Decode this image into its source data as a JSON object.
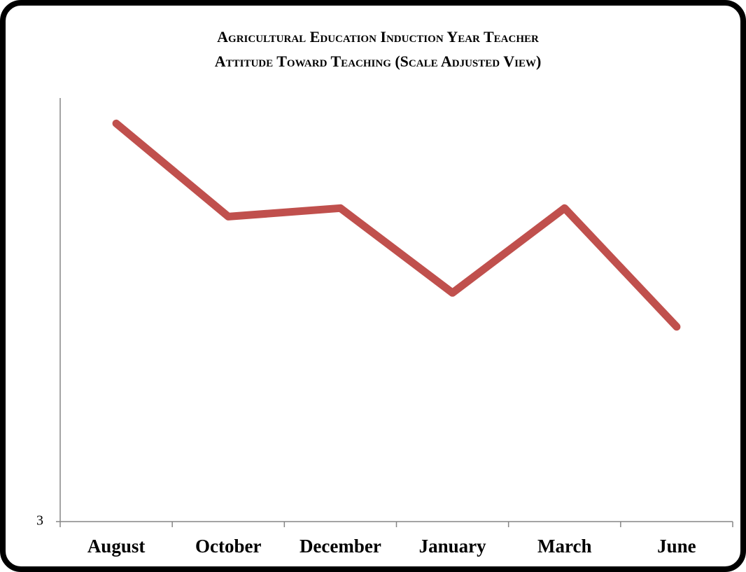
{
  "chart_data": {
    "type": "line",
    "title": [
      "Agricultural Education Induction Year Teacher",
      "Attitude Toward Teaching (Scale Adjusted View)"
    ],
    "categories": [
      "August",
      "October",
      "December",
      "January",
      "March",
      "June"
    ],
    "series": [
      {
        "color": "#c0504d",
        "values": [
          3.94,
          3.72,
          3.74,
          3.54,
          3.74,
          3.46
        ]
      }
    ],
    "ylim": [
      3,
      4
    ],
    "yticks": [
      3
    ],
    "grid": false
  }
}
